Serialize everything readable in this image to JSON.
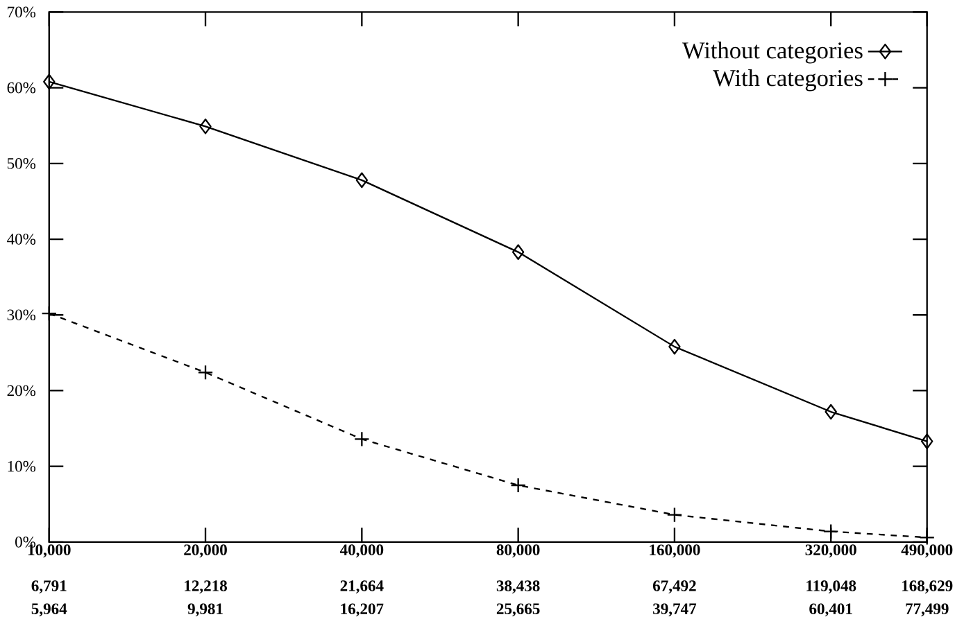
{
  "chart_data": {
    "type": "line",
    "log": "x",
    "x": [
      10000,
      20000,
      40000,
      80000,
      160000,
      320000,
      490000
    ],
    "series": [
      {
        "name": "Without categories",
        "color": "#000000",
        "marker": "diamond",
        "line_style": "solid",
        "values": [
          60.8,
          54.9,
          47.8,
          38.3,
          25.8,
          17.2,
          13.3
        ]
      },
      {
        "name": "With categories",
        "color": "#000000",
        "marker": "cross",
        "line_style": "dashed",
        "values": [
          30.2,
          22.4,
          13.6,
          7.5,
          3.6,
          1.4,
          0.6
        ]
      }
    ],
    "xlim": [
      10000,
      490000
    ],
    "xticks": [
      {
        "value": 10000,
        "label": "10,000"
      },
      {
        "value": 20000,
        "label": "20,000"
      },
      {
        "value": 40000,
        "label": "40,000"
      },
      {
        "value": 80000,
        "label": "80,000"
      },
      {
        "value": 160000,
        "label": "160,000"
      },
      {
        "value": 320000,
        "label": "320,000"
      },
      {
        "value": 490000,
        "label": "490,000"
      }
    ],
    "annotations": [
      "6,791",
      "5,964",
      "12,218",
      "9,981",
      "21,664",
      "16,207",
      "38,438",
      "25,665",
      "67,492",
      "39,747",
      "119,048",
      "60,401",
      "168,629",
      "77,499"
    ],
    "ylim": [
      0,
      70
    ],
    "yticks": [
      {
        "value": 0,
        "label": "0%"
      },
      {
        "value": 10,
        "label": "10%"
      },
      {
        "value": 20,
        "label": "20%"
      },
      {
        "value": 30,
        "label": "30%"
      },
      {
        "value": 40,
        "label": "40%"
      },
      {
        "value": 50,
        "label": "50%"
      },
      {
        "value": 60,
        "label": "60%"
      },
      {
        "value": 70,
        "label": "70%"
      }
    ],
    "grid": false,
    "legend": "top right"
  }
}
